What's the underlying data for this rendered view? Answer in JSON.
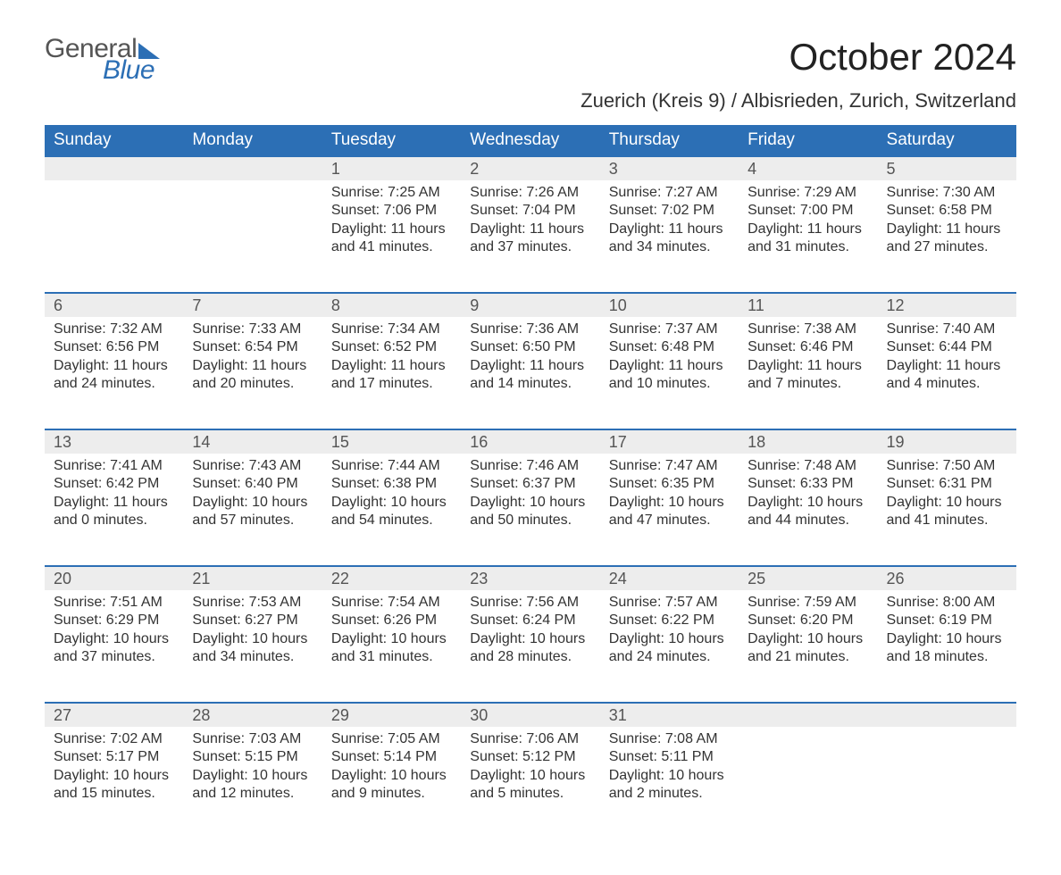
{
  "brand": {
    "line1": "General",
    "line2": "Blue"
  },
  "title": "October 2024",
  "location": "Zuerich (Kreis 9) / Albisrieden, Zurich, Switzerland",
  "colors": {
    "header_bg": "#2c6fb5",
    "header_fg": "#ffffff",
    "daynum_bg": "#ededed",
    "daynum_border": "#2c6fb5",
    "text": "#2a2a2a",
    "title_text": "#222222",
    "location_text": "#333333",
    "logo_gray": "#555555",
    "logo_blue": "#2c6fb5",
    "page_bg": "#ffffff"
  },
  "fonts": {
    "title_pt": 42,
    "location_pt": 22,
    "weekday_pt": 19,
    "daynum_pt": 18,
    "cell_pt": 16,
    "logo_pt": 30
  },
  "weekdays": [
    "Sunday",
    "Monday",
    "Tuesday",
    "Wednesday",
    "Thursday",
    "Friday",
    "Saturday"
  ],
  "labels": {
    "sunrise": "Sunrise:",
    "sunset": "Sunset:",
    "daylight": "Daylight:"
  },
  "weeks": [
    [
      null,
      null,
      {
        "n": "1",
        "rise": "7:25 AM",
        "set": "7:06 PM",
        "day": "11 hours and 41 minutes."
      },
      {
        "n": "2",
        "rise": "7:26 AM",
        "set": "7:04 PM",
        "day": "11 hours and 37 minutes."
      },
      {
        "n": "3",
        "rise": "7:27 AM",
        "set": "7:02 PM",
        "day": "11 hours and 34 minutes."
      },
      {
        "n": "4",
        "rise": "7:29 AM",
        "set": "7:00 PM",
        "day": "11 hours and 31 minutes."
      },
      {
        "n": "5",
        "rise": "7:30 AM",
        "set": "6:58 PM",
        "day": "11 hours and 27 minutes."
      }
    ],
    [
      {
        "n": "6",
        "rise": "7:32 AM",
        "set": "6:56 PM",
        "day": "11 hours and 24 minutes."
      },
      {
        "n": "7",
        "rise": "7:33 AM",
        "set": "6:54 PM",
        "day": "11 hours and 20 minutes."
      },
      {
        "n": "8",
        "rise": "7:34 AM",
        "set": "6:52 PM",
        "day": "11 hours and 17 minutes."
      },
      {
        "n": "9",
        "rise": "7:36 AM",
        "set": "6:50 PM",
        "day": "11 hours and 14 minutes."
      },
      {
        "n": "10",
        "rise": "7:37 AM",
        "set": "6:48 PM",
        "day": "11 hours and 10 minutes."
      },
      {
        "n": "11",
        "rise": "7:38 AM",
        "set": "6:46 PM",
        "day": "11 hours and 7 minutes."
      },
      {
        "n": "12",
        "rise": "7:40 AM",
        "set": "6:44 PM",
        "day": "11 hours and 4 minutes."
      }
    ],
    [
      {
        "n": "13",
        "rise": "7:41 AM",
        "set": "6:42 PM",
        "day": "11 hours and 0 minutes."
      },
      {
        "n": "14",
        "rise": "7:43 AM",
        "set": "6:40 PM",
        "day": "10 hours and 57 minutes."
      },
      {
        "n": "15",
        "rise": "7:44 AM",
        "set": "6:38 PM",
        "day": "10 hours and 54 minutes."
      },
      {
        "n": "16",
        "rise": "7:46 AM",
        "set": "6:37 PM",
        "day": "10 hours and 50 minutes."
      },
      {
        "n": "17",
        "rise": "7:47 AM",
        "set": "6:35 PM",
        "day": "10 hours and 47 minutes."
      },
      {
        "n": "18",
        "rise": "7:48 AM",
        "set": "6:33 PM",
        "day": "10 hours and 44 minutes."
      },
      {
        "n": "19",
        "rise": "7:50 AM",
        "set": "6:31 PM",
        "day": "10 hours and 41 minutes."
      }
    ],
    [
      {
        "n": "20",
        "rise": "7:51 AM",
        "set": "6:29 PM",
        "day": "10 hours and 37 minutes."
      },
      {
        "n": "21",
        "rise": "7:53 AM",
        "set": "6:27 PM",
        "day": "10 hours and 34 minutes."
      },
      {
        "n": "22",
        "rise": "7:54 AM",
        "set": "6:26 PM",
        "day": "10 hours and 31 minutes."
      },
      {
        "n": "23",
        "rise": "7:56 AM",
        "set": "6:24 PM",
        "day": "10 hours and 28 minutes."
      },
      {
        "n": "24",
        "rise": "7:57 AM",
        "set": "6:22 PM",
        "day": "10 hours and 24 minutes."
      },
      {
        "n": "25",
        "rise": "7:59 AM",
        "set": "6:20 PM",
        "day": "10 hours and 21 minutes."
      },
      {
        "n": "26",
        "rise": "8:00 AM",
        "set": "6:19 PM",
        "day": "10 hours and 18 minutes."
      }
    ],
    [
      {
        "n": "27",
        "rise": "7:02 AM",
        "set": "5:17 PM",
        "day": "10 hours and 15 minutes."
      },
      {
        "n": "28",
        "rise": "7:03 AM",
        "set": "5:15 PM",
        "day": "10 hours and 12 minutes."
      },
      {
        "n": "29",
        "rise": "7:05 AM",
        "set": "5:14 PM",
        "day": "10 hours and 9 minutes."
      },
      {
        "n": "30",
        "rise": "7:06 AM",
        "set": "5:12 PM",
        "day": "10 hours and 5 minutes."
      },
      {
        "n": "31",
        "rise": "7:08 AM",
        "set": "5:11 PM",
        "day": "10 hours and 2 minutes."
      },
      null,
      null
    ]
  ]
}
